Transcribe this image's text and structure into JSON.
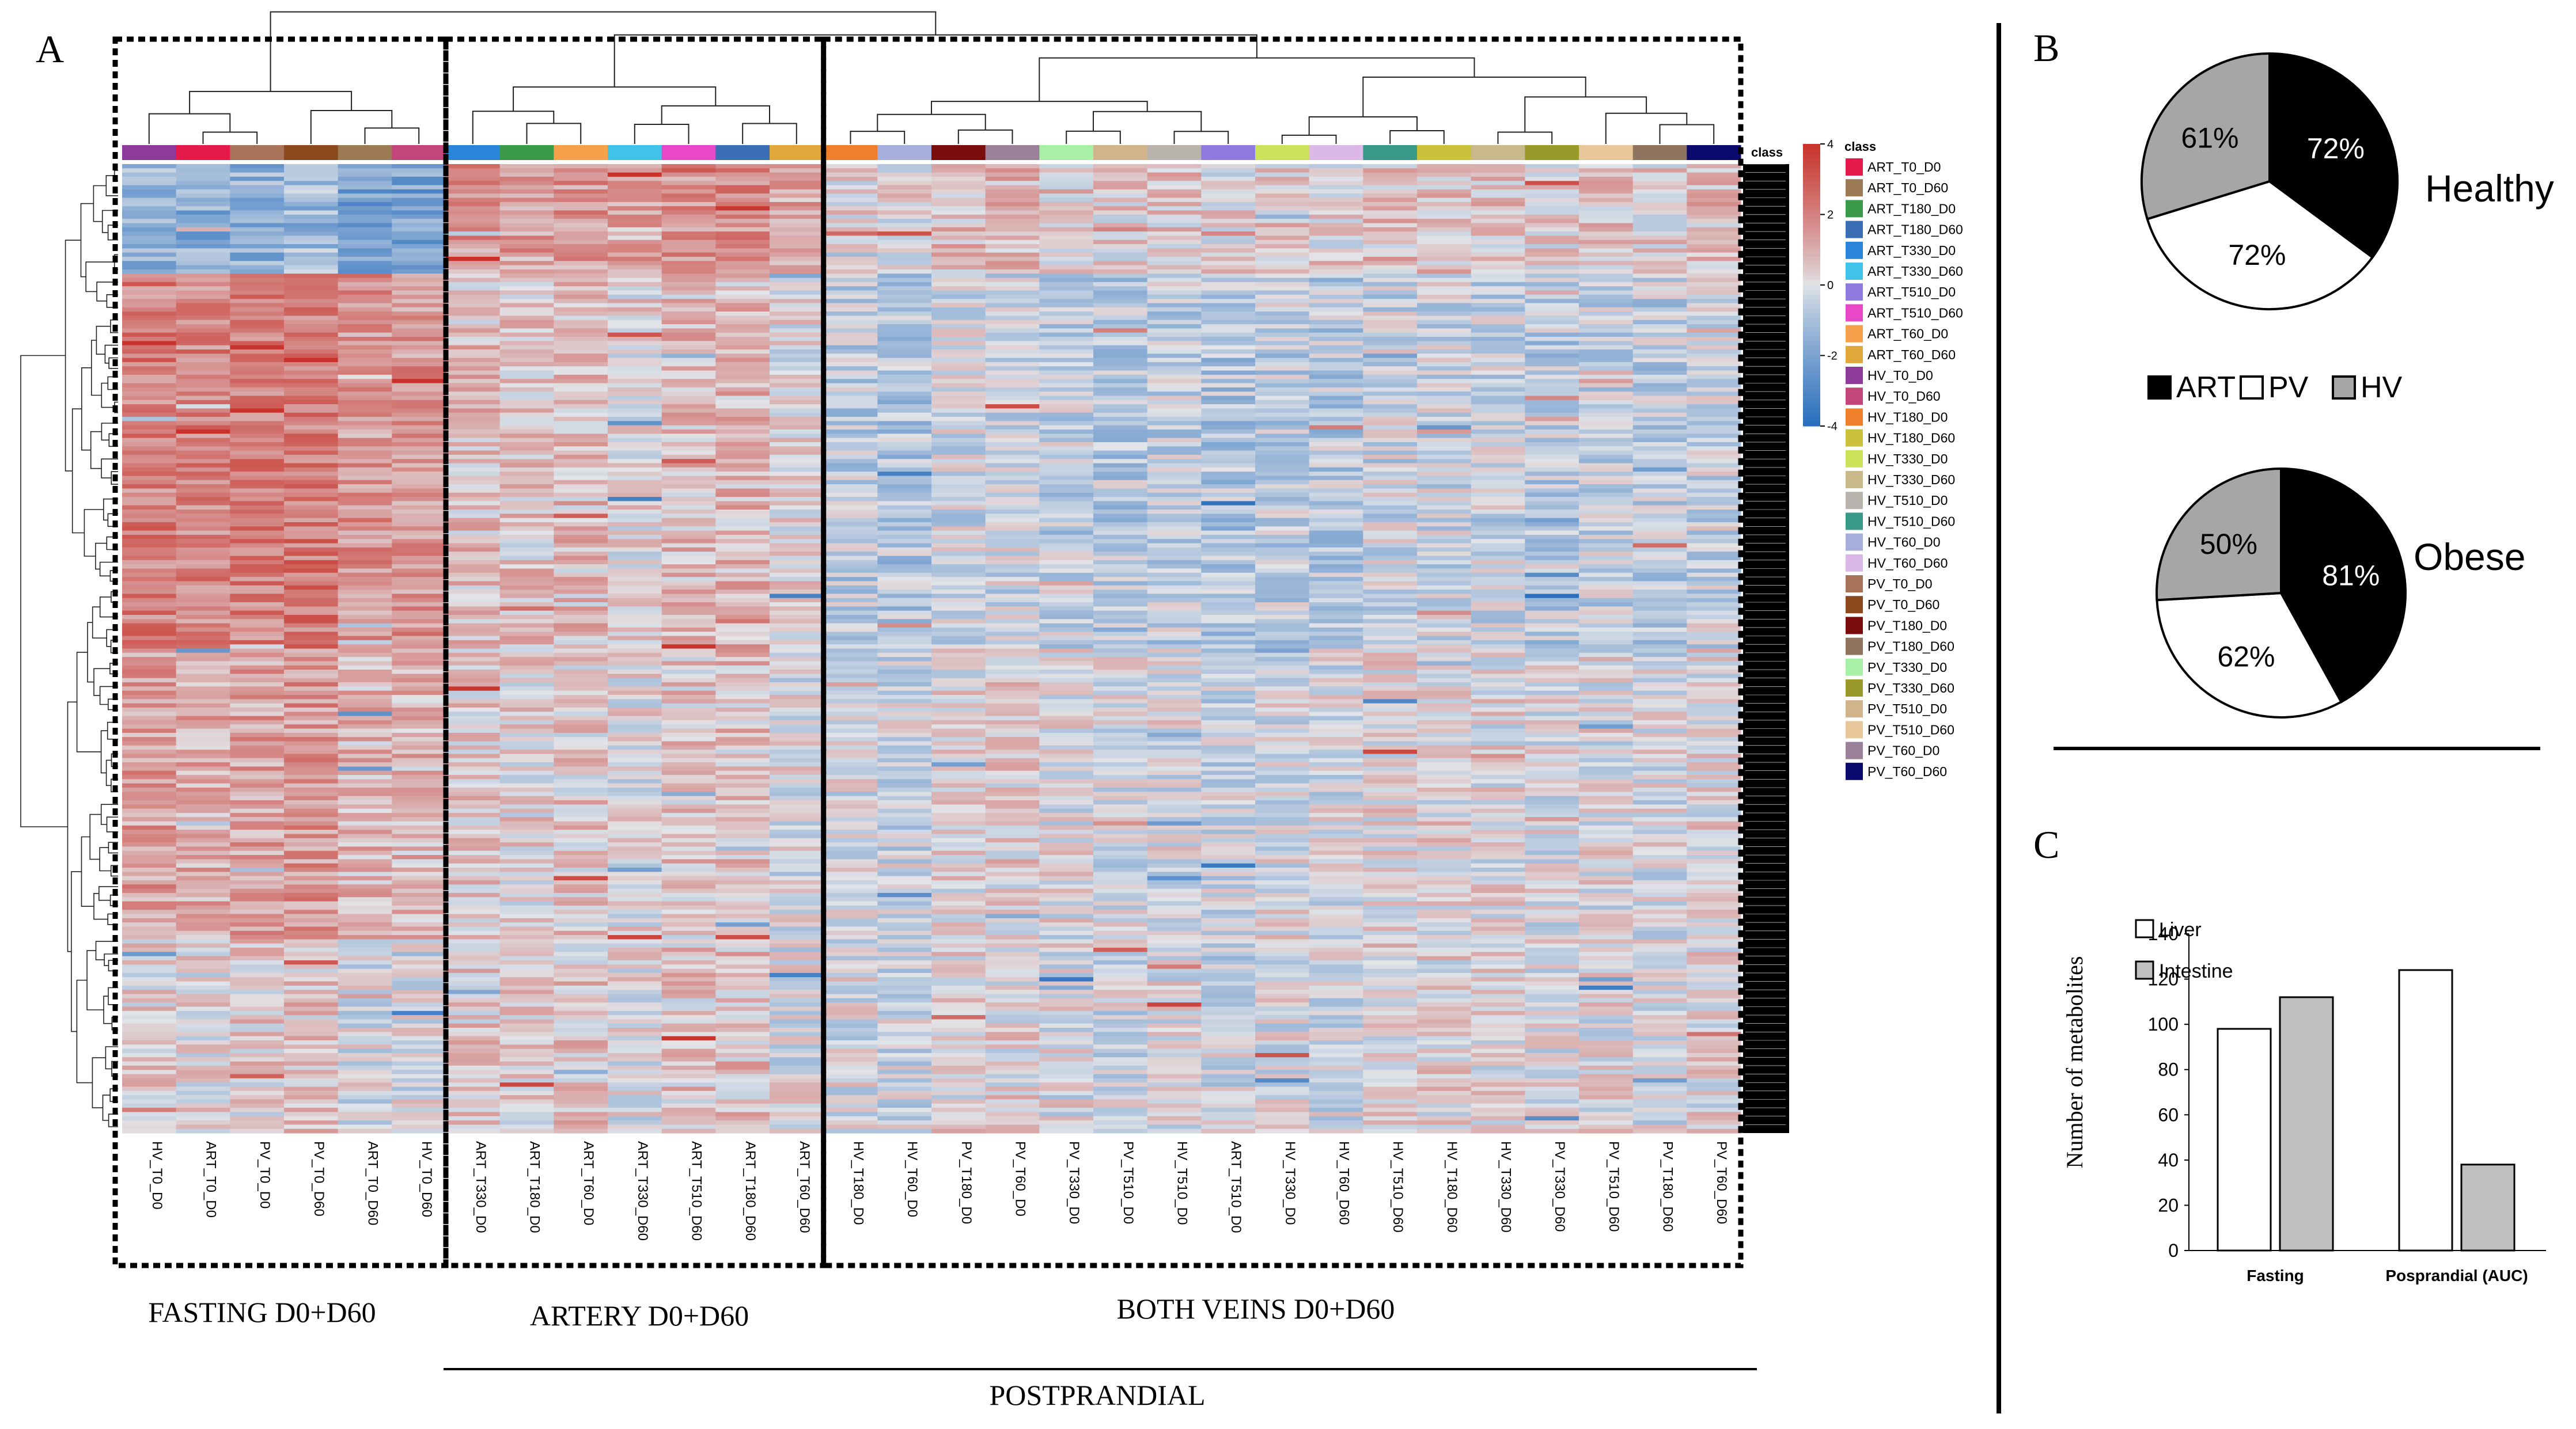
{
  "panel_labels": {
    "a": "A",
    "b": "B",
    "c": "C"
  },
  "chart_data": [
    {
      "type": "heatmap",
      "panel": "A",
      "title": "",
      "groups": [
        {
          "label": "FASTING D0+D60",
          "columns": [
            "HV_T0_D0",
            "ART_T0_D0",
            "PV_T0_D0",
            "PV_T0_D60",
            "ART_T0_D60",
            "HV_T0_D60"
          ]
        },
        {
          "label": "ARTERY D0+D60",
          "columns": [
            "ART_T330_D0",
            "ART_T180_D0",
            "ART_T60_D0",
            "ART_T330_D60",
            "ART_T510_D60",
            "ART_T180_D60",
            "ART_T60_D60"
          ]
        },
        {
          "label": "BOTH VEINS D0+D60",
          "columns": [
            "HV_T180_D0",
            "HV_T60_D0",
            "PV_T180_D0",
            "PV_T60_D0",
            "PV_T330_D0",
            "PV_T510_D0",
            "HV_T510_D0",
            "ART_T510_D0",
            "HV_T330_D0",
            "HV_T60_D60",
            "HV_T510_D60",
            "HV_T180_D60",
            "HV_T330_D60",
            "PV_T330_D60",
            "PV_T510_D60",
            "PV_T180_D60",
            "PV_T60_D60"
          ]
        }
      ],
      "bracket_label": "POSTPRANDIAL",
      "scale": {
        "min": -4,
        "max": 4,
        "ticks": [
          4,
          2,
          0,
          -2,
          -4
        ]
      },
      "class_strip_label": "class",
      "legend_title": "class",
      "legend": [
        {
          "label": "ART_T0_D0",
          "color": "#e6194b"
        },
        {
          "label": "ART_T0_D60",
          "color": "#9c7a55"
        },
        {
          "label": "ART_T180_D0",
          "color": "#3a9a4a"
        },
        {
          "label": "ART_T180_D60",
          "color": "#3a6fb5"
        },
        {
          "label": "ART_T330_D0",
          "color": "#2a85d8"
        },
        {
          "label": "ART_T330_D60",
          "color": "#3fc3e8"
        },
        {
          "label": "ART_T510_D0",
          "color": "#8f7be0"
        },
        {
          "label": "ART_T510_D60",
          "color": "#e847c8"
        },
        {
          "label": "ART_T60_D0",
          "color": "#f5a04a"
        },
        {
          "label": "ART_T60_D60",
          "color": "#e0a83a"
        },
        {
          "label": "HV_T0_D0",
          "color": "#8e3a9a"
        },
        {
          "label": "HV_T0_D60",
          "color": "#c2467a"
        },
        {
          "label": "HV_T180_D0",
          "color": "#ef7f2a"
        },
        {
          "label": "HV_T180_D60",
          "color": "#c9c23a"
        },
        {
          "label": "HV_T330_D0",
          "color": "#cde25a"
        },
        {
          "label": "HV_T330_D60",
          "color": "#c9b98a"
        },
        {
          "label": "HV_T510_D0",
          "color": "#b8b3ad"
        },
        {
          "label": "HV_T510_D60",
          "color": "#3a9a8a"
        },
        {
          "label": "HV_T60_D0",
          "color": "#a6aedb"
        },
        {
          "label": "HV_T60_D60",
          "color": "#dcb8e8"
        },
        {
          "label": "PV_T0_D0",
          "color": "#a9735a"
        },
        {
          "label": "PV_T0_D60",
          "color": "#8a4a1e"
        },
        {
          "label": "PV_T180_D0",
          "color": "#7a0c0c"
        },
        {
          "label": "PV_T180_D60",
          "color": "#8f7560"
        },
        {
          "label": "PV_T330_D0",
          "color": "#a8f0a8"
        },
        {
          "label": "PV_T330_D60",
          "color": "#9a9a2a"
        },
        {
          "label": "PV_T510_D0",
          "color": "#d2b48c"
        },
        {
          "label": "PV_T510_D60",
          "color": "#e8c79a"
        },
        {
          "label": "PV_T60_D0",
          "color": "#9a8098"
        },
        {
          "label": "PV_T60_D60",
          "color": "#0a0a6e"
        }
      ]
    },
    {
      "type": "pie",
      "panel": "B",
      "title": "Healthy",
      "slices": [
        {
          "label": "ART",
          "value": 72,
          "text": "72%",
          "color": "#000000"
        },
        {
          "label": "PV",
          "value": 72,
          "text": "72%",
          "color": "#ffffff"
        },
        {
          "label": "HV",
          "value": 61,
          "text": "61%",
          "color": "#a6a6a6"
        }
      ]
    },
    {
      "type": "pie",
      "panel": "B",
      "title": "Obese",
      "slices": [
        {
          "label": "ART",
          "value": 81,
          "text": "81%",
          "color": "#000000"
        },
        {
          "label": "PV",
          "value": 62,
          "text": "62%",
          "color": "#ffffff"
        },
        {
          "label": "HV",
          "value": 50,
          "text": "50%",
          "color": "#a6a6a6"
        }
      ]
    },
    {
      "type": "bar",
      "panel": "C",
      "title": "",
      "categories": [
        "Fasting",
        "Posprandial (AUC)"
      ],
      "series": [
        {
          "name": "Liver",
          "values": [
            98,
            124
          ],
          "color": "#ffffff"
        },
        {
          "name": "Intestine",
          "values": [
            112,
            38
          ],
          "color": "#bfbfbf"
        }
      ],
      "xlabel": "",
      "ylabel": "Number of metabolites",
      "ylim": [
        0,
        140
      ],
      "yticks": [
        0,
        20,
        40,
        60,
        80,
        100,
        120,
        140
      ]
    }
  ],
  "pie_legend": [
    {
      "label": "ART",
      "color": "#000000"
    },
    {
      "label": "PV",
      "color": "#ffffff"
    },
    {
      "label": "HV",
      "color": "#a6a6a6"
    }
  ]
}
